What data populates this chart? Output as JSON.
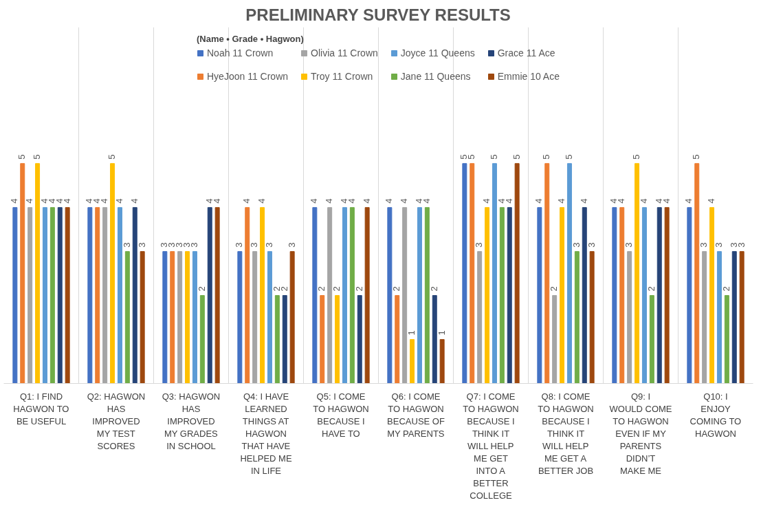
{
  "chart_data": {
    "type": "bar",
    "title": "PRELIMINARY SURVEY RESULTS",
    "legend_title": "(Name • Grade • Hagwon)",
    "categories": [
      "Q1: I FIND HAGWON TO BE USEFUL",
      "Q2: HAGWON HAS IMPROVED MY TEST SCORES",
      "Q3: HAGWON HAS IMPROVED MY GRADES IN SCHOOL",
      "Q4: I HAVE LEARNED THINGS AT HAGWON THAT HAVE HELPED ME IN LIFE",
      "Q5: I COME TO HAGWON BECAUSE I HAVE TO",
      "Q6: I COME TO HAGWON BECAUSE OF MY PARENTS",
      "Q7: I COME TO HAGWON BECAUSE I THINK IT WILL HELP ME GET INTO A BETTER COLLEGE",
      "Q8: I COME TO HAGWON BECAUSE I THINK IT WILL HELP ME GET A BETTER JOB",
      "Q9: I WOULD COME TO HAGWON EVEN IF MY PARENTS DIDN’T MAKE ME",
      "Q10: I ENJOY COMING TO HAGWON"
    ],
    "series": [
      {
        "name": "Noah 11 Crown",
        "color": "#4472c4",
        "values": [
          4,
          4,
          3,
          3,
          4,
          4,
          5,
          4,
          4,
          4
        ]
      },
      {
        "name": "HyeJoon 11 Crown",
        "color": "#ed7d31",
        "values": [
          5,
          4,
          3,
          4,
          2,
          2,
          5,
          5,
          4,
          5
        ]
      },
      {
        "name": "Olivia 11 Crown",
        "color": "#a5a5a5",
        "values": [
          4,
          4,
          3,
          3,
          4,
          4,
          3,
          2,
          3,
          3
        ]
      },
      {
        "name": "Troy 11 Crown",
        "color": "#ffc000",
        "values": [
          5,
          5,
          3,
          4,
          2,
          1,
          4,
          4,
          5,
          4
        ]
      },
      {
        "name": "Joyce 11 Queens",
        "color": "#5b9bd5",
        "values": [
          4,
          4,
          3,
          3,
          4,
          4,
          5,
          5,
          4,
          3
        ]
      },
      {
        "name": "Jane 11 Queens",
        "color": "#70ad47",
        "values": [
          4,
          3,
          2,
          2,
          4,
          4,
          4,
          3,
          2,
          2
        ]
      },
      {
        "name": "Grace 11 Ace",
        "color": "#264478",
        "values": [
          4,
          4,
          4,
          2,
          2,
          2,
          4,
          4,
          4,
          3
        ]
      },
      {
        "name": "Emmie 10 Ace",
        "color": "#9e480e",
        "values": [
          4,
          3,
          4,
          3,
          4,
          1,
          5,
          3,
          4,
          3
        ]
      }
    ],
    "data_labels": true,
    "grid": "x",
    "legend": "top"
  }
}
